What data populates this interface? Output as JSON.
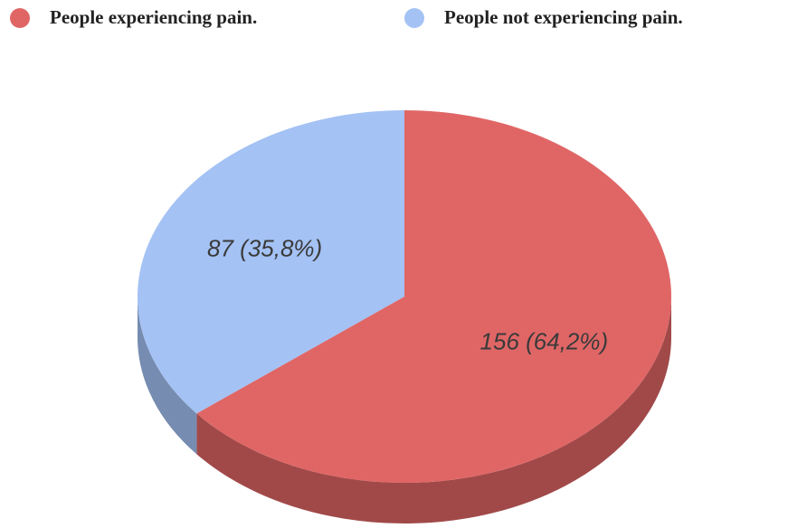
{
  "chart_data": {
    "type": "pie",
    "categories": [
      "People experiencing pain.",
      "People not experiencing pain."
    ],
    "values": [
      156,
      87
    ],
    "value_labels": [
      "156 (64,2%)",
      "87 (35,8%)"
    ],
    "colors": [
      "#e06666",
      "#a4c2f4"
    ]
  }
}
